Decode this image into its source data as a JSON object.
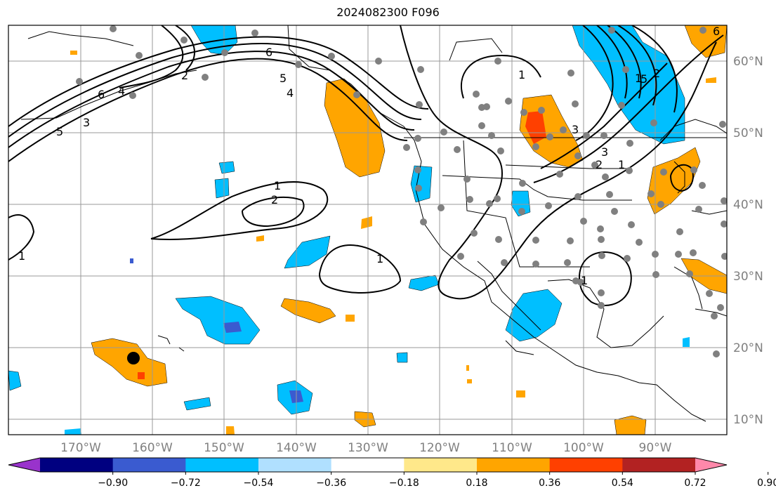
{
  "title": "2024082300 F096",
  "longitude_labels": [
    "170°W",
    "160°W",
    "150°W",
    "140°W",
    "130°W",
    "120°W",
    "110°W",
    "100°W",
    "90°W"
  ],
  "latitude_labels": [
    "60°N",
    "50°N",
    "40°N",
    "30°N",
    "20°N",
    "10°N"
  ],
  "colorbar": {
    "ticks": [
      "−0.90",
      "−0.72",
      "−0.54",
      "−0.36",
      "−0.18",
      "0.18",
      "0.36",
      "0.54",
      "0.72",
      "0.90"
    ],
    "colors": [
      "#9933cc",
      "#000080",
      "#3a5bd0",
      "#00bfff",
      "#b0e0ff",
      "#ffffff",
      "#ffe88a",
      "#ffa500",
      "#ff4000",
      "#b22222",
      "#ff88aa"
    ]
  },
  "contour_labels": [
    "1",
    "2",
    "3",
    "4",
    "5",
    "6",
    "1",
    "2",
    "1",
    "1",
    "1",
    "2",
    "3",
    "4",
    "5",
    "6",
    "1",
    "2",
    "3",
    "5",
    "6",
    "1"
  ],
  "colors": {
    "land_outline": "#000000",
    "grid": "#999999",
    "station_dot": "#808080",
    "highlight_dot": "#000000"
  }
}
